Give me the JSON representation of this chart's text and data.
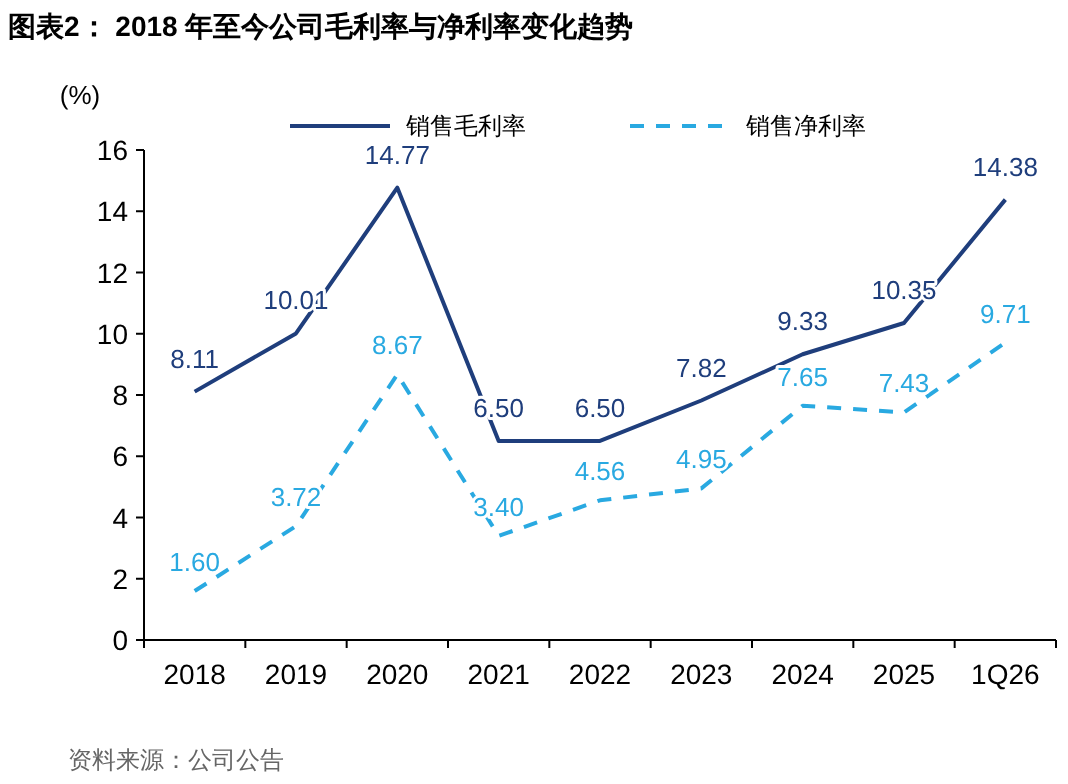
{
  "chart_data": {
    "type": "line",
    "title": "图表2： 2018 年至今公司毛利率与净利率变化趋势",
    "ylabel": "(%)",
    "categories": [
      "2018",
      "2019",
      "2020",
      "2021",
      "2022",
      "2023",
      "2024",
      "2025",
      "1Q26"
    ],
    "series": [
      {
        "name": "销售毛利率",
        "color": "#1f3e7c",
        "line_style": "solid",
        "values": [
          8.11,
          10.01,
          14.77,
          6.5,
          6.5,
          7.82,
          9.33,
          10.35,
          14.38
        ],
        "value_labels": [
          "8.11",
          "10.01",
          "14.77",
          "6.50",
          "6.50",
          "7.82",
          "9.33",
          "10.35",
          "14.38"
        ]
      },
      {
        "name": "销售净利率",
        "color": "#29a9e1",
        "line_style": "dashed",
        "values": [
          1.6,
          3.72,
          8.67,
          3.4,
          4.56,
          4.95,
          7.65,
          7.43,
          9.71
        ],
        "value_labels": [
          "1.60",
          "3.72",
          "8.67",
          "3.40",
          "4.56",
          "4.95",
          "7.65",
          "7.43",
          "9.71"
        ]
      }
    ],
    "ylim": [
      0,
      16
    ],
    "yticks": [
      0,
      2,
      4,
      6,
      8,
      10,
      12,
      14,
      16
    ],
    "legend": "top",
    "annotations": [
      "资料来源：公司公告"
    ]
  }
}
